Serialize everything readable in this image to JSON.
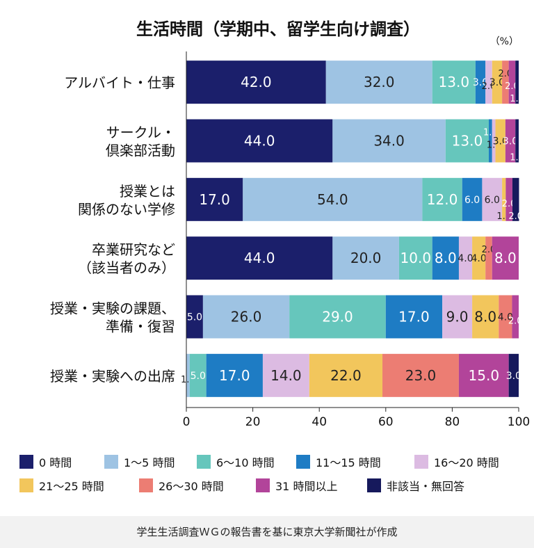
{
  "chart_data": {
    "type": "bar",
    "orientation": "horizontal",
    "stacked": true,
    "title": "生活時間（学期中、留学生向け調査）",
    "unit_label": "（%）",
    "xlim": [
      0,
      100
    ],
    "xticks": [
      "0",
      "20",
      "40",
      "60",
      "80",
      "100"
    ],
    "categories": [
      [
        "アルバイト・仕事"
      ],
      [
        "サークル・",
        "倶楽部活動"
      ],
      [
        "授業とは",
        "関係のない学修"
      ],
      [
        "卒業研究など",
        "（該当者のみ）"
      ],
      [
        "授業・実験の課題、",
        "準備・復習"
      ],
      [
        "授業・実験への出席"
      ]
    ],
    "series": [
      {
        "name": "0 時間",
        "color": "#1b1f6b",
        "values": [
          42,
          44,
          17,
          44,
          5,
          0
        ]
      },
      {
        "name": "1〜5 時間",
        "color": "#9ec3e3",
        "values": [
          32,
          34,
          54,
          20,
          26,
          1
        ]
      },
      {
        "name": "6〜10 時間",
        "color": "#66c6bc",
        "values": [
          13,
          13,
          12,
          10,
          29,
          5
        ]
      },
      {
        "name": "11〜15 時間",
        "color": "#1e7cc4",
        "values": [
          3,
          1,
          6,
          8,
          17,
          17
        ]
      },
      {
        "name": "16〜20 時間",
        "color": "#dcbbe2",
        "values": [
          2,
          1,
          6,
          4,
          9,
          14
        ]
      },
      {
        "name": "21〜25 時間",
        "color": "#f2c65c",
        "values": [
          3,
          3,
          1.1,
          4,
          8,
          22
        ]
      },
      {
        "name": "26〜30 時間",
        "color": "#ec7d73",
        "values": [
          2,
          0,
          0,
          2,
          4,
          23
        ]
      },
      {
        "name": "31 時間以上",
        "color": "#b2449a",
        "values": [
          2,
          3,
          2,
          8,
          2,
          15
        ]
      },
      {
        "name": "非該当・無回答",
        "color": "#16195c",
        "values": [
          1,
          1,
          2,
          0,
          0,
          3
        ]
      }
    ],
    "data_labels": [
      [
        "42.0",
        "32.0",
        "13.0",
        "3.0",
        "2.0",
        "3.0",
        "2.0",
        "2.0",
        "1.0"
      ],
      [
        "44.0",
        "34.0",
        "13.0",
        "1.0",
        "1.0",
        "3.0",
        "",
        "3.0",
        "1.0"
      ],
      [
        "17.0",
        "54.0",
        "12.0",
        "6.0",
        "6.0",
        "1.1",
        "",
        "2.0",
        "2.0"
      ],
      [
        "44.0",
        "20.0",
        "10.0",
        "8.0",
        "4.0",
        "4.0",
        "2.0",
        "8.0",
        ""
      ],
      [
        "5.0",
        "26.0",
        "29.0",
        "17.0",
        "9.0",
        "8.0",
        "4.0",
        "2.0",
        ""
      ],
      [
        "",
        "1.0",
        "5.0",
        "17.0",
        "14.0",
        "22.0",
        "23.0",
        "15.0",
        "3.0"
      ]
    ]
  },
  "footer": {
    "source": "学生生活調査ＷＧの報告書を基に東京大学新聞社が作成"
  }
}
